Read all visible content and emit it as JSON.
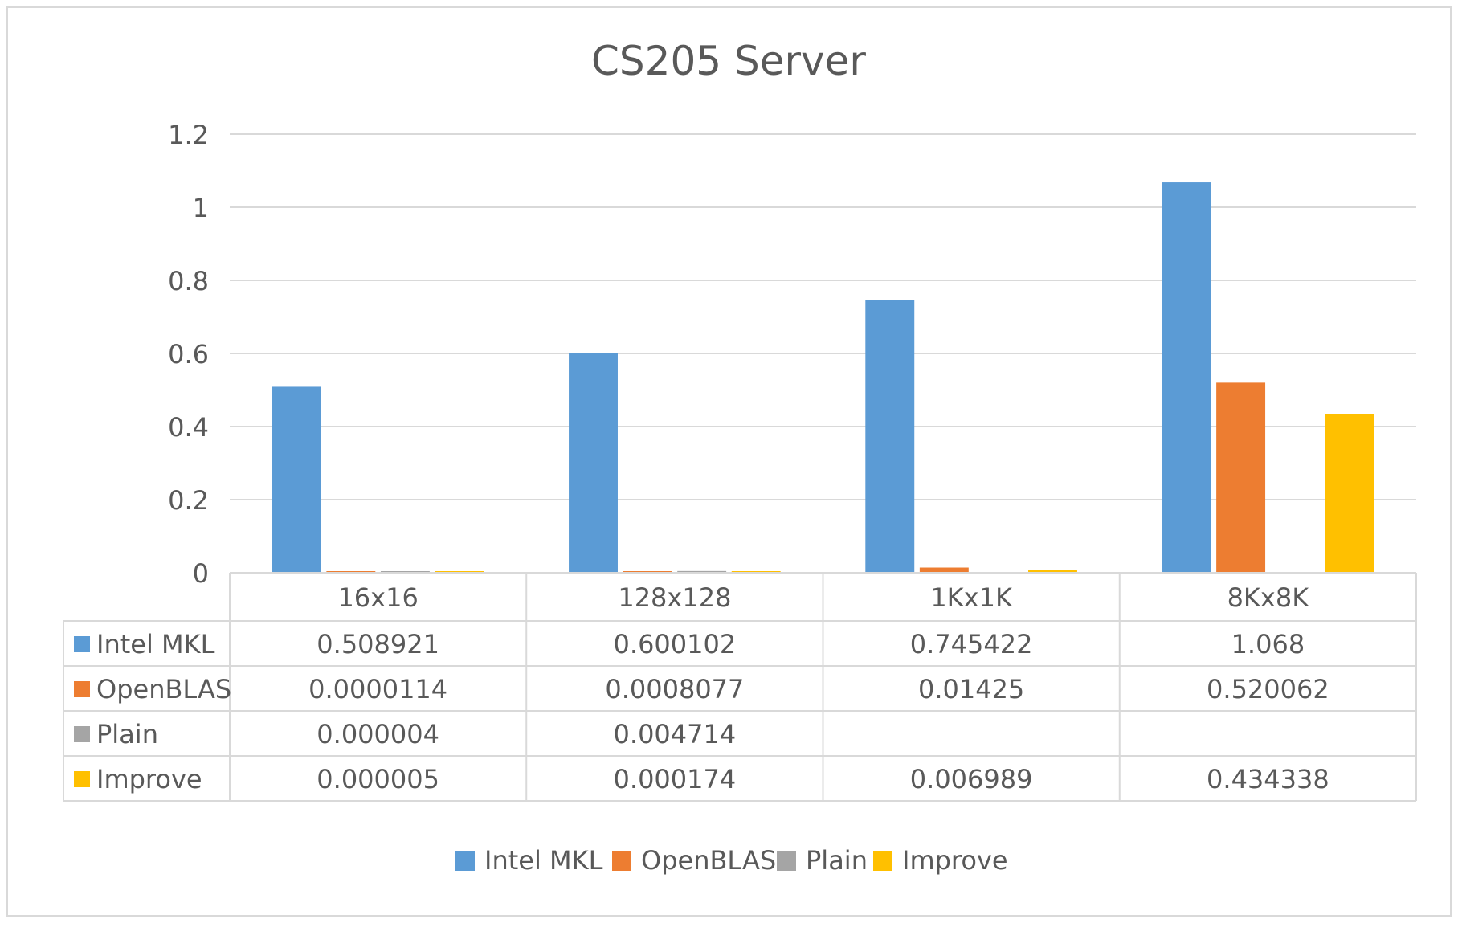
{
  "chart_data": {
    "type": "bar",
    "title": "CS205 Server",
    "categories": [
      "16x16",
      "128x128",
      "1Kx1K",
      "8Kx8K"
    ],
    "series": [
      {
        "name": "Intel MKL",
        "color": "#5B9BD5",
        "values": [
          0.508921,
          0.600102,
          0.745422,
          1.068
        ],
        "labels": [
          "0.508921",
          "0.600102",
          "0.745422",
          "1.068"
        ]
      },
      {
        "name": "OpenBLAS",
        "color": "#ED7D31",
        "values": [
          1.14e-05,
          0.0008077,
          0.01425,
          0.520062
        ],
        "labels": [
          "0.0000114",
          "0.0008077",
          "0.01425",
          "0.520062"
        ]
      },
      {
        "name": "Plain",
        "color": "#A5A5A5",
        "values": [
          4e-06,
          0.004714,
          null,
          null
        ],
        "labels": [
          "0.000004",
          "0.004714",
          "",
          ""
        ]
      },
      {
        "name": "Improve",
        "color": "#FFC000",
        "values": [
          5e-06,
          0.000174,
          0.006989,
          0.434338
        ],
        "labels": [
          "0.000005",
          "0.000174",
          "0.006989",
          "0.434338"
        ]
      }
    ],
    "yticks": [
      "0",
      "0.2",
      "0.4",
      "0.6",
      "0.8",
      "1",
      "1.2"
    ],
    "ylim": [
      0,
      1.2
    ],
    "grid": true,
    "legend": "bottom",
    "data_table": true
  }
}
